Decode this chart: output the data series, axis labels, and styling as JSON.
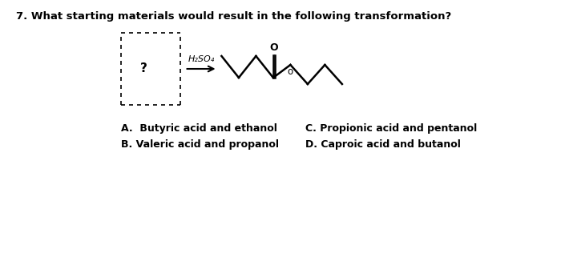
{
  "title": "7. What starting materials would result in the following transformation?",
  "question_box_label": "?",
  "reagent": "H₂SO₄",
  "choices_left": [
    "A.  Butyric acid and ethanol",
    "B. Valeric acid and propanol"
  ],
  "choices_right": [
    "C. Propionic acid and pentanol",
    "D. Caproic acid and butanol"
  ],
  "bg_color": "#ffffff",
  "text_color": "#000000",
  "title_fontsize": 9.5,
  "choice_fontsize": 9
}
